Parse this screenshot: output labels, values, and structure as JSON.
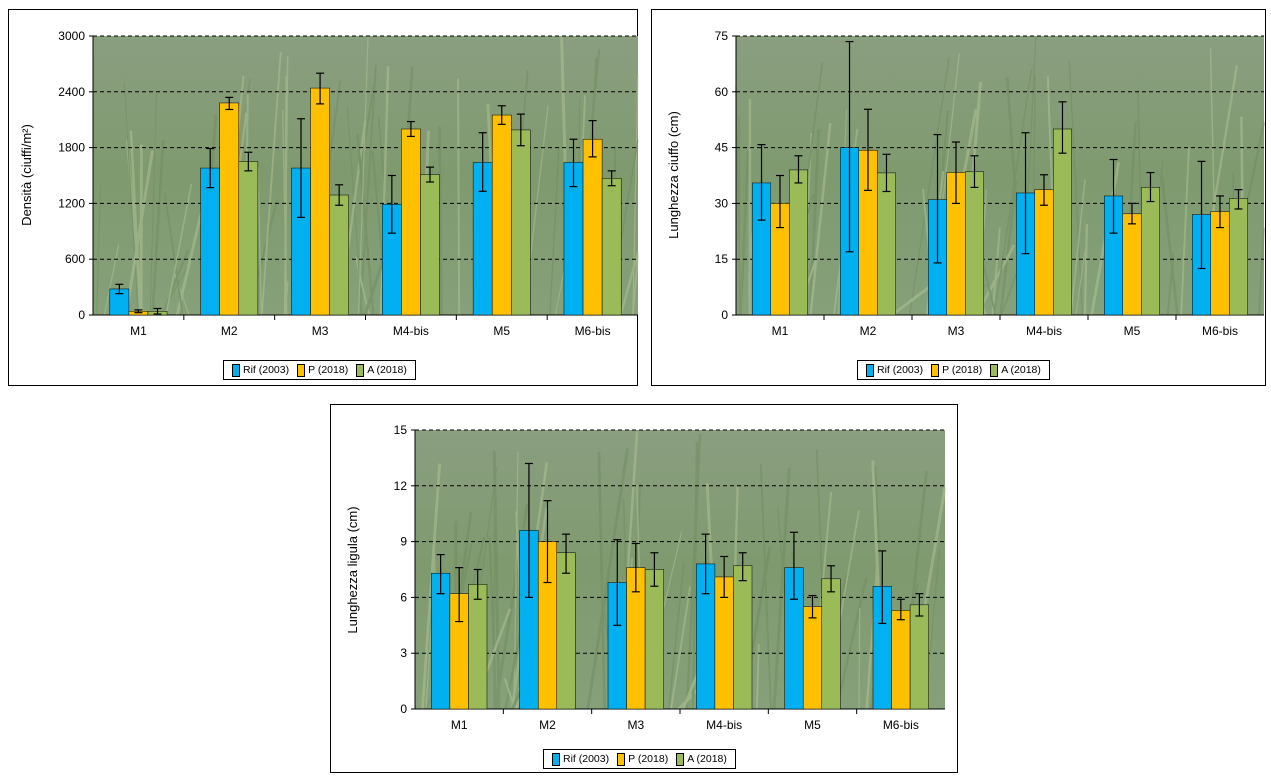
{
  "colors": {
    "rif": "#00B0F0",
    "p": "#FFC000",
    "a": "#9BBB59",
    "grid": "#000000"
  },
  "legend": {
    "rif": "Rif (2003)",
    "p": "P (2018)",
    "a": "A (2018)"
  },
  "chart_data": [
    {
      "type": "bar",
      "ylabel": "Densità (ciuffi/m²)",
      "xlabel": "",
      "ylim": [
        0,
        3000
      ],
      "yticks": [
        0,
        600,
        1200,
        1800,
        2400,
        3000
      ],
      "ytick_labels": [
        "0",
        "600",
        "1200",
        "1800",
        "2400",
        "3000"
      ],
      "grid": true,
      "legend_position": "bottom",
      "background": "seagrass photo",
      "categories": [
        "M1",
        "M2",
        "M3",
        "M4-bis",
        "M5",
        "M6-bis"
      ],
      "series": [
        {
          "name": "Rif (2003)",
          "values": [
            280,
            1580,
            1580,
            1190,
            1640,
            1640
          ],
          "err_low": [
            230,
            1370,
            1050,
            880,
            1330,
            1380
          ],
          "err_high": [
            330,
            1790,
            2110,
            1500,
            1960,
            1890
          ]
        },
        {
          "name": "P (2018)",
          "values": [
            40,
            2280,
            2440,
            2000,
            2150,
            1890
          ],
          "err_low": [
            25,
            2210,
            2270,
            1920,
            2050,
            1700
          ],
          "err_high": [
            55,
            2340,
            2600,
            2080,
            2250,
            2090
          ]
        },
        {
          "name": "A (2018)",
          "values": [
            40,
            1650,
            1290,
            1510,
            1990,
            1470
          ],
          "err_low": [
            10,
            1550,
            1180,
            1430,
            1820,
            1390
          ],
          "err_high": [
            70,
            1750,
            1400,
            1590,
            2160,
            1550
          ]
        }
      ]
    },
    {
      "type": "bar",
      "ylabel": "Lunghezza ciuffo (cm)",
      "xlabel": "",
      "ylim": [
        0,
        75
      ],
      "yticks": [
        0,
        15,
        30,
        45,
        60,
        75
      ],
      "ytick_labels": [
        "0",
        "15",
        "30",
        "45",
        "60",
        "75"
      ],
      "grid": true,
      "legend_position": "bottom",
      "background": "seagrass photo",
      "categories": [
        "M1",
        "M2",
        "M3",
        "M4-bis",
        "M5",
        "M6-bis"
      ],
      "series": [
        {
          "name": "Rif (2003)",
          "values": [
            35.5,
            45,
            31,
            32.8,
            32,
            27
          ],
          "err_low": [
            25.5,
            17,
            14,
            16.5,
            22,
            12.5
          ],
          "err_high": [
            45.8,
            73.5,
            48.5,
            49,
            41.8,
            41.3
          ]
        },
        {
          "name": "P (2018)",
          "values": [
            30,
            44.3,
            38.3,
            33.7,
            27.2,
            27.8
          ],
          "err_low": [
            23.5,
            33.5,
            30,
            29.5,
            24.5,
            23.5
          ],
          "err_high": [
            37.5,
            55.3,
            46.5,
            37.7,
            30,
            32
          ]
        },
        {
          "name": "A (2018)",
          "values": [
            39,
            38.2,
            38.5,
            50,
            34.3,
            31.3
          ],
          "err_low": [
            35.5,
            33.2,
            34.3,
            43.5,
            30.5,
            28.5
          ],
          "err_high": [
            42.8,
            43.2,
            42.8,
            57.3,
            38.3,
            33.7
          ]
        }
      ]
    },
    {
      "type": "bar",
      "ylabel": "Lunghezza ligula (cm)",
      "xlabel": "",
      "ylim": [
        0,
        15
      ],
      "yticks": [
        0,
        3,
        6,
        9,
        12,
        15
      ],
      "ytick_labels": [
        "0",
        "3",
        "6",
        "9",
        "12",
        "15"
      ],
      "grid": true,
      "legend_position": "bottom",
      "background": "seagrass photo",
      "categories": [
        "M1",
        "M2",
        "M3",
        "M4-bis",
        "M5",
        "M6-bis"
      ],
      "series": [
        {
          "name": "Rif (2003)",
          "values": [
            7.3,
            9.6,
            6.8,
            7.8,
            7.6,
            6.6
          ],
          "err_low": [
            6.2,
            6,
            4.5,
            6.2,
            5.9,
            4.6
          ],
          "err_high": [
            8.3,
            13.2,
            9.1,
            9.4,
            9.5,
            8.5
          ]
        },
        {
          "name": "P (2018)",
          "values": [
            6.2,
            9,
            7.6,
            7.1,
            5.5,
            5.3
          ],
          "err_low": [
            4.7,
            6.8,
            6.3,
            6,
            4.9,
            4.8
          ],
          "err_high": [
            7.6,
            11.2,
            8.9,
            8.2,
            6.1,
            5.9
          ]
        },
        {
          "name": "A (2018)",
          "values": [
            6.7,
            8.4,
            7.5,
            7.7,
            7,
            5.6
          ],
          "err_low": [
            5.9,
            7.3,
            6.6,
            6.9,
            6.3,
            5
          ],
          "err_high": [
            7.5,
            9.4,
            8.4,
            8.4,
            7.7,
            6.2
          ]
        }
      ]
    }
  ]
}
